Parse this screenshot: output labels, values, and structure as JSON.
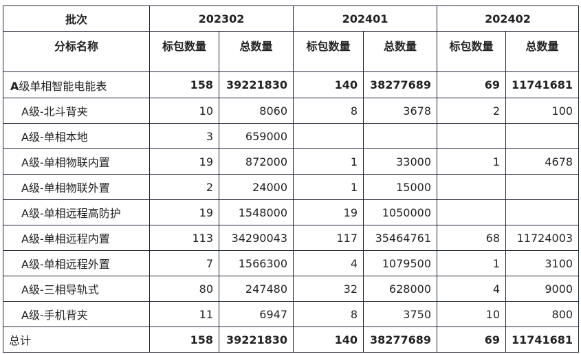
{
  "header": {
    "batch_label": "批次",
    "name_label": "分标名称",
    "batches": [
      "202302",
      "202401",
      "202402"
    ],
    "sub_columns": [
      "标包数量",
      "总数量"
    ]
  },
  "group_row": {
    "prefix": "A",
    "name": "级单相智能电能表",
    "values": [
      "158",
      "39221830",
      "140",
      "38277689",
      "69",
      "11741681"
    ]
  },
  "rows": [
    {
      "name": "A级-北斗背夹",
      "values": [
        "10",
        "8060",
        "8",
        "3678",
        "2",
        "100"
      ]
    },
    {
      "name": "A级-单相本地",
      "values": [
        "3",
        "659000",
        "",
        "",
        "",
        ""
      ]
    },
    {
      "name": "A级-单相物联内置",
      "values": [
        "19",
        "872000",
        "1",
        "33000",
        "1",
        "4678"
      ]
    },
    {
      "name": "A级-单相物联外置",
      "values": [
        "2",
        "24000",
        "1",
        "15000",
        "",
        ""
      ]
    },
    {
      "name": "A级-单相远程高防护",
      "values": [
        "19",
        "1548000",
        "19",
        "1050000",
        "",
        ""
      ]
    },
    {
      "name": "A级-单相远程内置",
      "values": [
        "113",
        "34290043",
        "117",
        "35464761",
        "68",
        "11724003"
      ]
    },
    {
      "name": "A级-单相远程外置",
      "values": [
        "7",
        "1566300",
        "4",
        "1079500",
        "1",
        "3100"
      ]
    },
    {
      "name": "A级-三相导轨式",
      "values": [
        "80",
        "247480",
        "32",
        "628000",
        "4",
        "9000"
      ]
    },
    {
      "name": "A级-手机背夹",
      "values": [
        "11",
        "6947",
        "8",
        "3750",
        "10",
        "800"
      ]
    }
  ],
  "total_row": {
    "name": "总计",
    "values": [
      "158",
      "39221830",
      "140",
      "38277689",
      "69",
      "11741681"
    ]
  }
}
